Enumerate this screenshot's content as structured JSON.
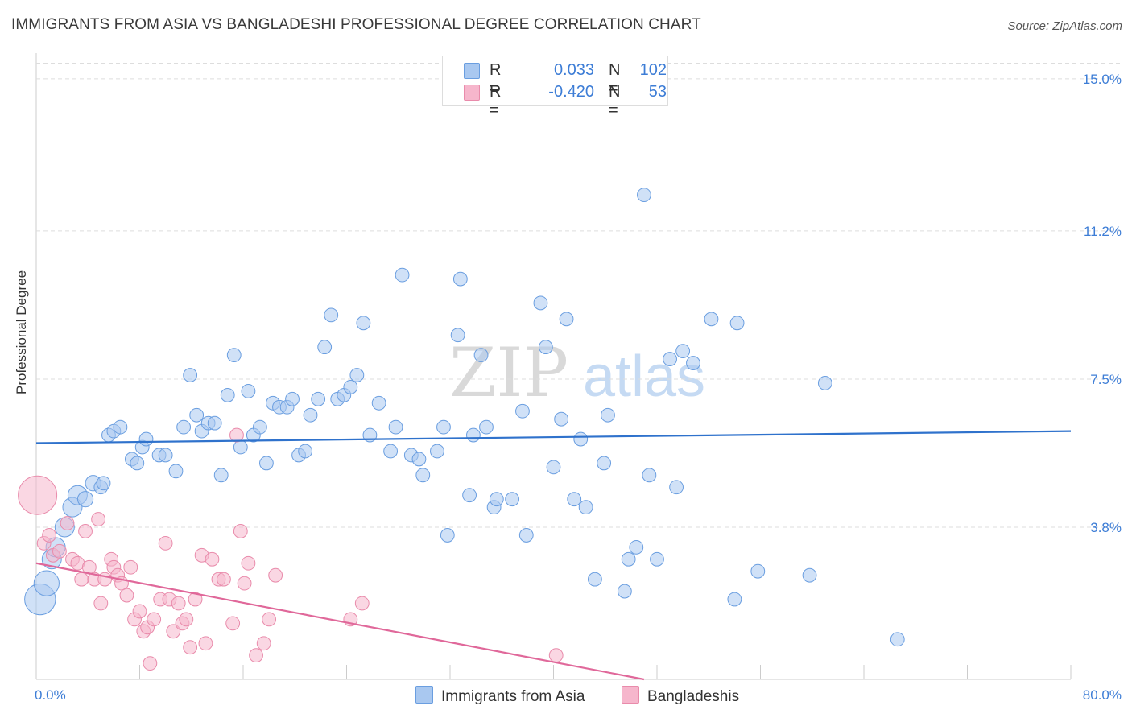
{
  "title": "IMMIGRANTS FROM ASIA VS BANGLADESHI PROFESSIONAL DEGREE CORRELATION CHART",
  "source": "Source: ZipAtlas.com",
  "watermark": {
    "zip": "ZIP",
    "atlas": "atlas"
  },
  "legend": {
    "rows": [
      {
        "r_label": "R =",
        "r_value": "0.033",
        "n_label": "N =",
        "n_value": "102"
      },
      {
        "r_label": "R =",
        "r_value": "-0.420",
        "n_label": "N =",
        "n_value": "53"
      }
    ]
  },
  "bottom_legend": [
    {
      "label": "Immigrants from Asia"
    },
    {
      "label": "Bangladeshis"
    }
  ],
  "colors": {
    "blue_fill": "#a9c8f0",
    "blue_stroke": "#6a9ee0",
    "blue_line": "#2f72cc",
    "pink_fill": "#f6b6cc",
    "pink_stroke": "#e98bab",
    "pink_line": "#e0689a",
    "tick_text": "#3d7dd6",
    "grid": "#dddddd"
  },
  "chart_data": {
    "type": "scatter",
    "title": "IMMIGRANTS FROM ASIA VS BANGLADESHI PROFESSIONAL DEGREE CORRELATION CHART",
    "xlabel": "",
    "ylabel": "Professional Degree",
    "xlim": [
      0,
      80
    ],
    "ylim": [
      0,
      15.4
    ],
    "x_tick_labels": [
      "0.0%",
      "80.0%"
    ],
    "y_ticks": [
      3.8,
      7.5,
      11.2,
      15.0
    ],
    "y_tick_labels": [
      "3.8%",
      "7.5%",
      "11.2%",
      "15.0%"
    ],
    "grid": "horizontal dashed",
    "legend_position": "top-center",
    "series": [
      {
        "name": "Immigrants from Asia",
        "r": 0.033,
        "n": 102,
        "trend": [
          [
            0,
            5.9
          ],
          [
            80,
            6.2
          ]
        ],
        "points": [
          [
            0.3,
            2.0,
            1.6
          ],
          [
            0.8,
            2.4,
            1.3
          ],
          [
            1.2,
            3.0,
            1.0
          ],
          [
            1.5,
            3.3,
            1.0
          ],
          [
            2.2,
            3.8,
            1.0
          ],
          [
            2.8,
            4.3,
            1.0
          ],
          [
            3.2,
            4.6,
            1.0
          ],
          [
            3.8,
            4.5,
            0.8
          ],
          [
            4.4,
            4.9,
            0.8
          ],
          [
            5.0,
            4.8,
            0.7
          ],
          [
            5.2,
            4.9,
            0.7
          ],
          [
            5.6,
            6.1,
            0.7
          ],
          [
            6.0,
            6.2,
            0.7
          ],
          [
            6.5,
            6.3,
            0.7
          ],
          [
            7.4,
            5.5,
            0.7
          ],
          [
            7.8,
            5.4,
            0.7
          ],
          [
            8.2,
            5.8,
            0.7
          ],
          [
            8.5,
            6.0,
            0.7
          ],
          [
            9.5,
            5.6,
            0.7
          ],
          [
            10.0,
            5.6,
            0.7
          ],
          [
            10.8,
            5.2,
            0.7
          ],
          [
            11.4,
            6.3,
            0.7
          ],
          [
            11.9,
            7.6,
            0.7
          ],
          [
            12.4,
            6.6,
            0.7
          ],
          [
            12.8,
            6.2,
            0.7
          ],
          [
            13.3,
            6.4,
            0.7
          ],
          [
            13.8,
            6.4,
            0.7
          ],
          [
            14.3,
            5.1,
            0.7
          ],
          [
            14.8,
            7.1,
            0.7
          ],
          [
            15.3,
            8.1,
            0.7
          ],
          [
            15.8,
            5.8,
            0.7
          ],
          [
            16.4,
            7.2,
            0.7
          ],
          [
            16.8,
            6.1,
            0.7
          ],
          [
            17.3,
            6.3,
            0.7
          ],
          [
            17.8,
            5.4,
            0.7
          ],
          [
            18.3,
            6.9,
            0.7
          ],
          [
            18.8,
            6.8,
            0.7
          ],
          [
            19.4,
            6.8,
            0.7
          ],
          [
            19.8,
            7.0,
            0.7
          ],
          [
            20.3,
            5.6,
            0.7
          ],
          [
            20.8,
            5.7,
            0.7
          ],
          [
            21.2,
            6.6,
            0.7
          ],
          [
            21.8,
            7.0,
            0.7
          ],
          [
            22.3,
            8.3,
            0.7
          ],
          [
            22.8,
            9.1,
            0.7
          ],
          [
            23.3,
            7.0,
            0.7
          ],
          [
            23.8,
            7.1,
            0.7
          ],
          [
            24.3,
            7.3,
            0.7
          ],
          [
            24.8,
            7.6,
            0.7
          ],
          [
            25.3,
            8.9,
            0.7
          ],
          [
            25.8,
            6.1,
            0.7
          ],
          [
            26.5,
            6.9,
            0.7
          ],
          [
            27.4,
            5.7,
            0.7
          ],
          [
            27.8,
            6.3,
            0.7
          ],
          [
            28.3,
            10.1,
            0.7
          ],
          [
            29.0,
            5.6,
            0.7
          ],
          [
            29.6,
            5.5,
            0.7
          ],
          [
            29.9,
            5.1,
            0.7
          ],
          [
            31.0,
            5.7,
            0.7
          ],
          [
            31.5,
            6.3,
            0.7
          ],
          [
            31.8,
            3.6,
            0.7
          ],
          [
            32.6,
            8.6,
            0.7
          ],
          [
            32.8,
            10.0,
            0.7
          ],
          [
            33.5,
            4.6,
            0.7
          ],
          [
            33.8,
            6.1,
            0.7
          ],
          [
            34.4,
            8.1,
            0.7
          ],
          [
            34.8,
            6.3,
            0.7
          ],
          [
            35.4,
            4.3,
            0.7
          ],
          [
            35.6,
            4.5,
            0.7
          ],
          [
            36.8,
            4.5,
            0.7
          ],
          [
            37.6,
            6.7,
            0.7
          ],
          [
            37.9,
            3.6,
            0.7
          ],
          [
            39.0,
            9.4,
            0.7
          ],
          [
            39.4,
            8.3,
            0.7
          ],
          [
            40.0,
            5.3,
            0.7
          ],
          [
            40.6,
            6.5,
            0.7
          ],
          [
            41.0,
            9.0,
            0.7
          ],
          [
            41.6,
            4.5,
            0.7
          ],
          [
            42.1,
            6.0,
            0.7
          ],
          [
            42.5,
            4.3,
            0.7
          ],
          [
            43.2,
            2.5,
            0.7
          ],
          [
            43.9,
            5.4,
            0.7
          ],
          [
            44.2,
            6.6,
            0.7
          ],
          [
            45.5,
            2.2,
            0.7
          ],
          [
            45.8,
            3.0,
            0.7
          ],
          [
            46.4,
            3.3,
            0.7
          ],
          [
            47.0,
            12.1,
            0.7
          ],
          [
            47.4,
            5.1,
            0.7
          ],
          [
            48.0,
            3.0,
            0.7
          ],
          [
            49.0,
            8.0,
            0.7
          ],
          [
            49.5,
            4.8,
            0.7
          ],
          [
            50.0,
            8.2,
            0.7
          ],
          [
            50.8,
            7.9,
            0.7
          ],
          [
            52.2,
            9.0,
            0.7
          ],
          [
            54.0,
            2.0,
            0.7
          ],
          [
            54.2,
            8.9,
            0.7
          ],
          [
            55.8,
            2.7,
            0.7
          ],
          [
            59.8,
            2.6,
            0.7
          ],
          [
            61.0,
            7.4,
            0.7
          ],
          [
            66.6,
            1.0,
            0.7
          ]
        ]
      },
      {
        "name": "Bangladeshis",
        "r": -0.42,
        "n": 53,
        "trend": [
          [
            0,
            2.9
          ],
          [
            47,
            0.0
          ]
        ],
        "points": [
          [
            0.1,
            4.6,
            2.0
          ],
          [
            0.6,
            3.4,
            0.7
          ],
          [
            1.0,
            3.6,
            0.7
          ],
          [
            1.3,
            3.1,
            0.7
          ],
          [
            1.8,
            3.2,
            0.7
          ],
          [
            2.4,
            3.9,
            0.7
          ],
          [
            2.8,
            3.0,
            0.7
          ],
          [
            3.2,
            2.9,
            0.7
          ],
          [
            3.5,
            2.5,
            0.7
          ],
          [
            3.8,
            3.7,
            0.7
          ],
          [
            4.1,
            2.8,
            0.7
          ],
          [
            4.5,
            2.5,
            0.7
          ],
          [
            4.8,
            4.0,
            0.7
          ],
          [
            5.0,
            1.9,
            0.7
          ],
          [
            5.3,
            2.5,
            0.7
          ],
          [
            5.8,
            3.0,
            0.7
          ],
          [
            6.0,
            2.8,
            0.7
          ],
          [
            6.3,
            2.6,
            0.7
          ],
          [
            6.6,
            2.4,
            0.7
          ],
          [
            7.0,
            2.1,
            0.7
          ],
          [
            7.3,
            2.8,
            0.7
          ],
          [
            7.6,
            1.5,
            0.7
          ],
          [
            8.0,
            1.7,
            0.7
          ],
          [
            8.3,
            1.2,
            0.7
          ],
          [
            8.6,
            1.3,
            0.7
          ],
          [
            8.8,
            0.4,
            0.7
          ],
          [
            9.1,
            1.5,
            0.7
          ],
          [
            9.6,
            2.0,
            0.7
          ],
          [
            10.0,
            3.4,
            0.7
          ],
          [
            10.3,
            2.0,
            0.7
          ],
          [
            10.6,
            1.2,
            0.7
          ],
          [
            11.0,
            1.9,
            0.7
          ],
          [
            11.3,
            1.4,
            0.7
          ],
          [
            11.6,
            1.5,
            0.7
          ],
          [
            11.9,
            0.8,
            0.7
          ],
          [
            12.3,
            2.0,
            0.7
          ],
          [
            12.8,
            3.1,
            0.7
          ],
          [
            13.1,
            0.9,
            0.7
          ],
          [
            13.6,
            3.0,
            0.7
          ],
          [
            14.1,
            2.5,
            0.7
          ],
          [
            14.5,
            2.5,
            0.7
          ],
          [
            15.2,
            1.4,
            0.7
          ],
          [
            15.5,
            6.1,
            0.7
          ],
          [
            15.8,
            3.7,
            0.7
          ],
          [
            16.1,
            2.4,
            0.7
          ],
          [
            16.4,
            2.9,
            0.7
          ],
          [
            17.0,
            0.6,
            0.7
          ],
          [
            17.6,
            0.9,
            0.7
          ],
          [
            18.0,
            1.5,
            0.7
          ],
          [
            18.5,
            2.6,
            0.7
          ],
          [
            24.3,
            1.5,
            0.7
          ],
          [
            25.2,
            1.9,
            0.7
          ],
          [
            40.2,
            0.6,
            0.7
          ]
        ]
      }
    ]
  }
}
